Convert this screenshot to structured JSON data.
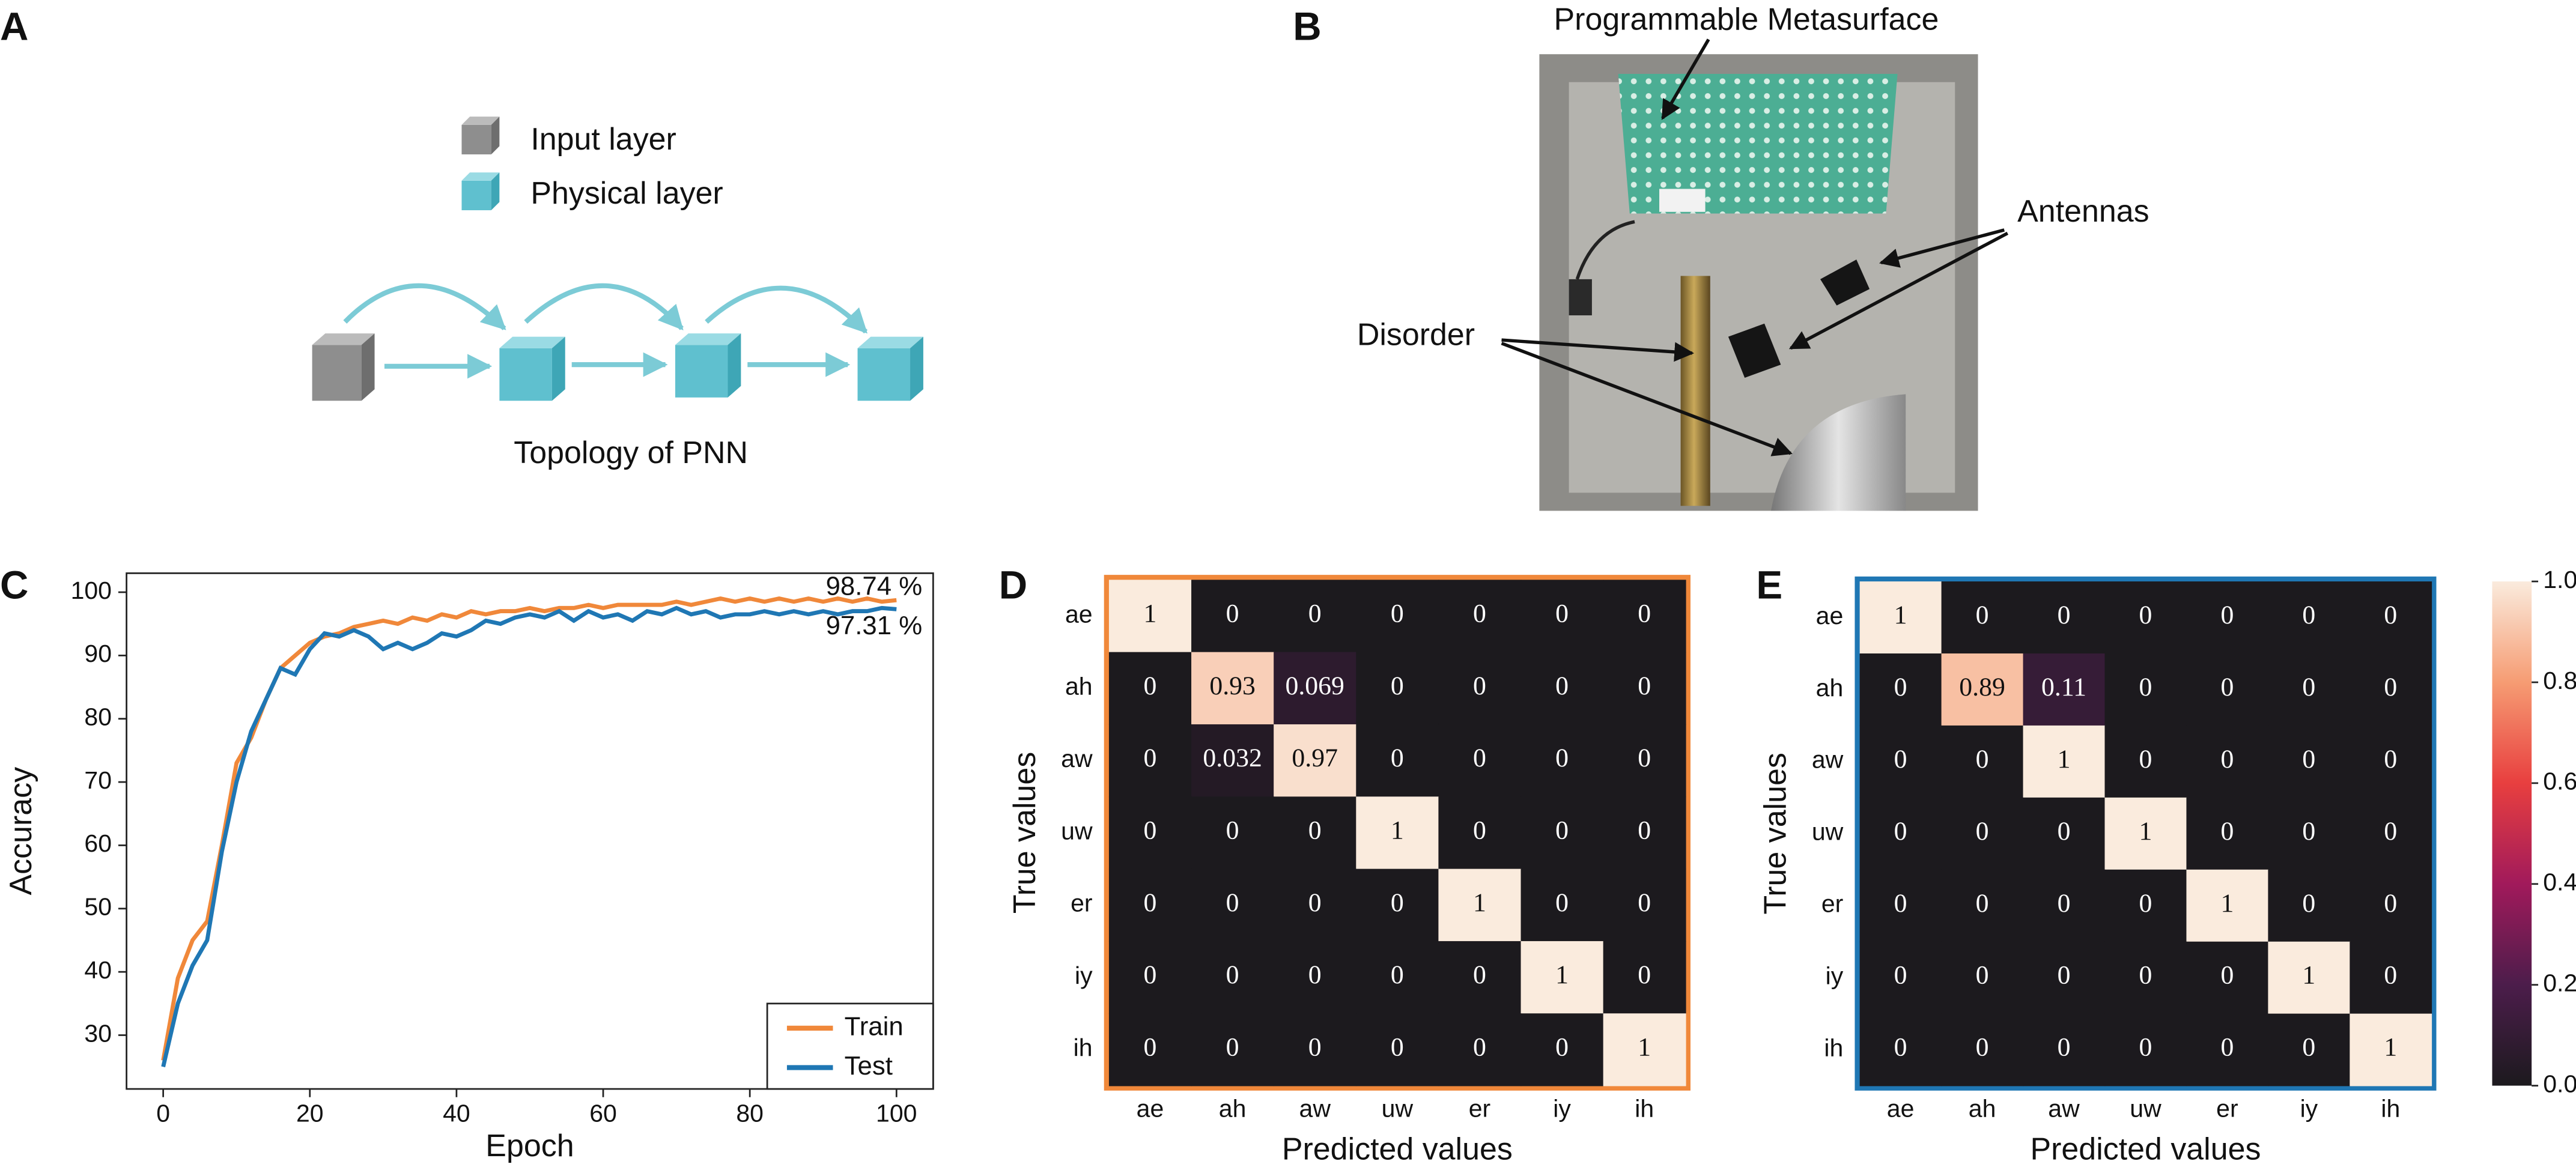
{
  "panel_labels": [
    "A",
    "B",
    "C",
    "D",
    "E"
  ],
  "diagram_a": {
    "legend": [
      "Input layer",
      "Physical layer"
    ],
    "caption": "Topology of PNN"
  },
  "photo_b": {
    "labels": [
      "Programmable Metasurface",
      "Antennas",
      "Disorder"
    ]
  },
  "chart_data": [
    {
      "type": "line",
      "xlabel": "Epoch",
      "ylabel": "Accuracy",
      "x": [
        0,
        2,
        4,
        6,
        8,
        10,
        12,
        14,
        16,
        18,
        20,
        22,
        24,
        26,
        28,
        30,
        32,
        34,
        36,
        38,
        40,
        42,
        44,
        46,
        48,
        50,
        52,
        54,
        56,
        58,
        60,
        62,
        64,
        66,
        68,
        70,
        72,
        74,
        76,
        78,
        80,
        82,
        84,
        86,
        88,
        90,
        92,
        94,
        96,
        98,
        100
      ],
      "series": [
        {
          "name": "Train",
          "color": "#f0883a",
          "values": [
            26,
            39,
            45,
            48,
            60,
            73,
            77,
            83,
            88,
            90,
            92,
            93,
            93.5,
            94.5,
            95,
            95.5,
            95,
            96,
            95.5,
            96.5,
            96,
            97,
            96.5,
            97,
            97,
            97.5,
            97,
            97.5,
            97.5,
            98,
            97.5,
            98,
            98,
            98,
            98,
            98.5,
            98,
            98.5,
            99,
            98.5,
            99,
            98.5,
            99,
            98.5,
            99,
            98.5,
            99,
            98.5,
            99,
            98.5,
            98.74
          ]
        },
        {
          "name": "Test",
          "color": "#1f77b4",
          "values": [
            25,
            35,
            41,
            45,
            59,
            70,
            78,
            83,
            88,
            87,
            91,
            93.5,
            93,
            94,
            93,
            91,
            92,
            91,
            92,
            93.5,
            93,
            94,
            95.5,
            95,
            96,
            96.5,
            96,
            97,
            95.5,
            97,
            96,
            96.5,
            95.5,
            97,
            96.5,
            97.5,
            96.5,
            97,
            96,
            96.5,
            96.5,
            97,
            96.5,
            97,
            96.5,
            97,
            96.5,
            97,
            97,
            97.5,
            97.31
          ]
        }
      ],
      "annotations": [
        "98.74 %",
        "97.31 %"
      ],
      "xlim": [
        -5,
        105
      ],
      "ylim": [
        21.5,
        103
      ],
      "xticks": [
        0,
        20,
        40,
        60,
        80,
        100
      ],
      "yticks": [
        30,
        40,
        50,
        60,
        70,
        80,
        90,
        100
      ],
      "legend": "lower right"
    },
    {
      "type": "heatmap",
      "xlabel": "Predicted values",
      "ylabel": "True values",
      "border_color": "#f0883a",
      "x_categories": [
        "ae",
        "ah",
        "aw",
        "uw",
        "er",
        "iy",
        "ih"
      ],
      "y_categories": [
        "ae",
        "ah",
        "aw",
        "uw",
        "er",
        "iy",
        "ih"
      ],
      "z": [
        [
          1,
          0,
          0,
          0,
          0,
          0,
          0
        ],
        [
          0,
          0.93,
          0.069,
          0,
          0,
          0,
          0
        ],
        [
          0,
          0.032,
          0.97,
          0,
          0,
          0,
          0
        ],
        [
          0,
          0,
          0,
          1,
          0,
          0,
          0
        ],
        [
          0,
          0,
          0,
          0,
          1,
          0,
          0
        ],
        [
          0,
          0,
          0,
          0,
          0,
          1,
          0
        ],
        [
          0,
          0,
          0,
          0,
          0,
          0,
          1
        ]
      ],
      "clim": [
        0,
        1
      ],
      "colormap": [
        "#1c1a1e",
        "#4c1d4b",
        "#a11a5b",
        "#e83f3f",
        "#f69c73",
        "#faebdd"
      ]
    },
    {
      "type": "heatmap",
      "xlabel": "Predicted values",
      "ylabel": "True values",
      "border_color": "#1f77b4",
      "x_categories": [
        "ae",
        "ah",
        "aw",
        "uw",
        "er",
        "iy",
        "ih"
      ],
      "y_categories": [
        "ae",
        "ah",
        "aw",
        "uw",
        "er",
        "iy",
        "ih"
      ],
      "z": [
        [
          1,
          0,
          0,
          0,
          0,
          0,
          0
        ],
        [
          0,
          0.89,
          0.11,
          0,
          0,
          0,
          0
        ],
        [
          0,
          0,
          1,
          0,
          0,
          0,
          0
        ],
        [
          0,
          0,
          0,
          1,
          0,
          0,
          0
        ],
        [
          0,
          0,
          0,
          0,
          1,
          0,
          0
        ],
        [
          0,
          0,
          0,
          0,
          0,
          1,
          0
        ],
        [
          0,
          0,
          0,
          0,
          0,
          0,
          1
        ]
      ],
      "clim": [
        0,
        1
      ],
      "colormap": [
        "#1c1a1e",
        "#4c1d4b",
        "#a11a5b",
        "#e83f3f",
        "#f69c73",
        "#faebdd"
      ],
      "colorbar_ticks": [
        {
          "value": 0,
          "label": "0.0"
        },
        {
          "value": 0.2,
          "label": "0.2"
        },
        {
          "value": 0.4,
          "label": "0.4"
        },
        {
          "value": 0.6,
          "label": "0.6"
        },
        {
          "value": 0.8,
          "label": "0.8"
        },
        {
          "value": 1,
          "label": "1.0"
        }
      ]
    }
  ]
}
